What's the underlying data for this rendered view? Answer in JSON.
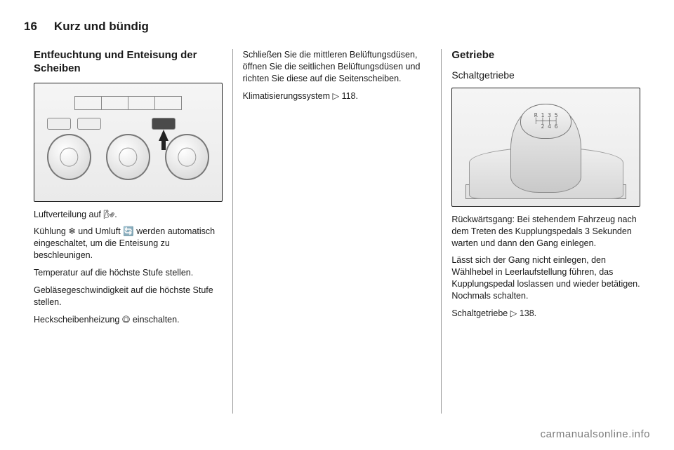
{
  "header": {
    "page_number": "16",
    "chapter": "Kurz und bündig"
  },
  "col1": {
    "h1": "Entfeuchtung und Enteisung der Scheiben",
    "p1": "Luftverteilung auf 🌬.",
    "p2": "Kühlung ❄ und Umluft 🔄 werden automatisch eingeschaltet, um die Enteisung zu beschleunigen.",
    "p3": "Temperatur auf die höchste Stufe stellen.",
    "p4": "Gebläsegeschwindigkeit auf die höchste Stufe stellen.",
    "p5": "Heckscheibenheizung 🟗 einschalten."
  },
  "col2": {
    "p1": "Schließen Sie die mittleren Belüftungsdüsen, öffnen Sie die seitlichen Belüftungsdüsen und richten Sie diese auf die Seitenscheiben.",
    "p2": "Klimatisierungssystem ▷ 118."
  },
  "col3": {
    "h1": "Getriebe",
    "h2": "Schaltgetriebe",
    "p1": "Rückwärtsgang: Bei stehendem Fahrzeug nach dem Treten des Kupplungspedals 3 Sekunden warten und dann den Gang einlegen.",
    "p2": "Lässt sich der Gang nicht einlegen, den Wählhebel in Leerlaufstellung führen, das Kupplungspedal loslassen und wieder betätigen. Nochmals schalten.",
    "p3": "Schaltgetriebe ▷ 138."
  },
  "gear_pattern": "R 1 3 5\n├─┼─┼─┤\n  2 4 6",
  "watermark": "carmanualsonline.info"
}
